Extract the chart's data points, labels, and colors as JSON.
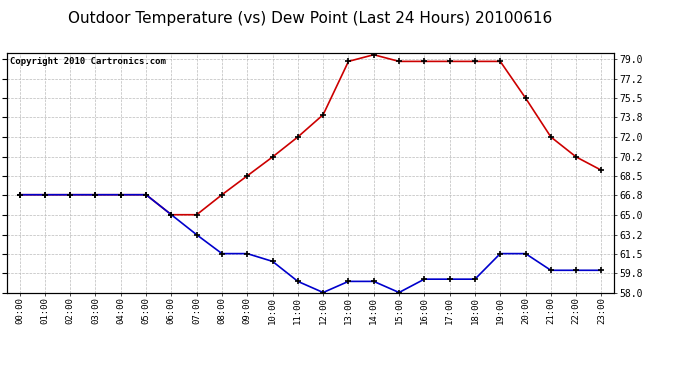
{
  "title": "Outdoor Temperature (vs) Dew Point (Last 24 Hours) 20100616",
  "copyright_text": "Copyright 2010 Cartronics.com",
  "x_labels": [
    "00:00",
    "01:00",
    "02:00",
    "03:00",
    "04:00",
    "05:00",
    "06:00",
    "07:00",
    "08:00",
    "09:00",
    "10:00",
    "11:00",
    "12:00",
    "13:00",
    "14:00",
    "15:00",
    "16:00",
    "17:00",
    "18:00",
    "19:00",
    "20:00",
    "21:00",
    "22:00",
    "23:00"
  ],
  "temp_values": [
    66.8,
    66.8,
    66.8,
    66.8,
    66.8,
    66.8,
    65.0,
    65.0,
    66.8,
    68.5,
    70.2,
    72.0,
    74.0,
    78.8,
    79.4,
    78.8,
    78.8,
    78.8,
    78.8,
    78.8,
    75.5,
    72.0,
    70.2,
    69.0
  ],
  "dew_values": [
    66.8,
    66.8,
    66.8,
    66.8,
    66.8,
    66.8,
    65.0,
    63.2,
    61.5,
    61.5,
    60.8,
    59.0,
    58.0,
    59.0,
    59.0,
    58.0,
    59.2,
    59.2,
    59.2,
    61.5,
    61.5,
    60.0,
    60.0,
    60.0
  ],
  "temp_color": "#cc0000",
  "dew_color": "#0000cc",
  "background_color": "#ffffff",
  "plot_bg_color": "#ffffff",
  "grid_color": "#bbbbbb",
  "ylim": [
    58.0,
    79.6
  ],
  "yticks": [
    58.0,
    59.8,
    61.5,
    63.2,
    65.0,
    66.8,
    68.5,
    70.2,
    72.0,
    73.8,
    75.5,
    77.2,
    79.0
  ],
  "title_fontsize": 11,
  "copyright_fontsize": 6.5,
  "marker": "+",
  "markersize": 5,
  "markeredgewidth": 1.2,
  "linewidth": 1.2
}
